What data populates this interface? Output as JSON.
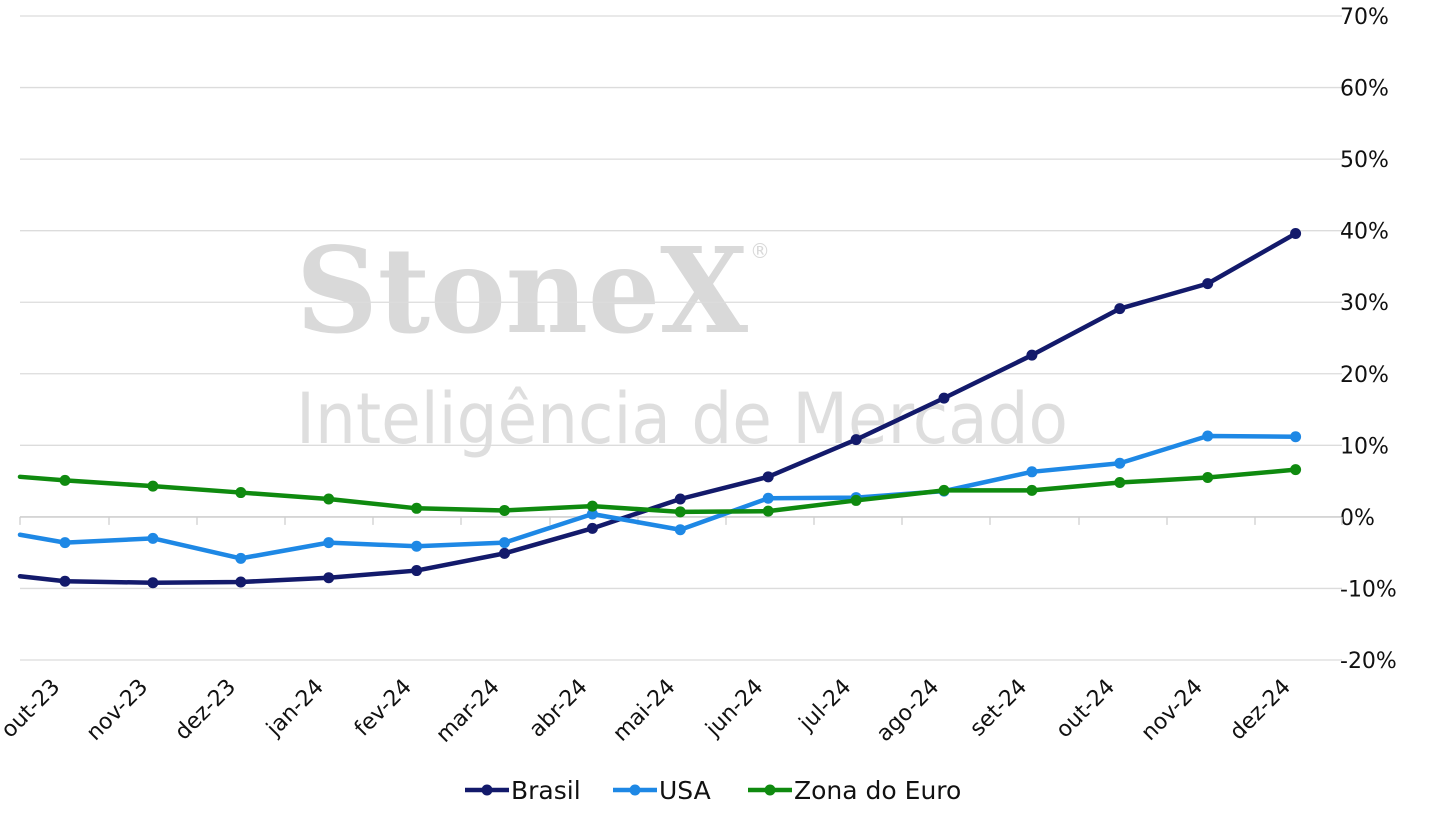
{
  "watermark": {
    "brand": "StoneX",
    "registered": "®",
    "subtitle": "Inteligência de Mercado"
  },
  "chart_data": {
    "type": "line",
    "categories": [
      "out-23",
      "nov-23",
      "dez-23",
      "jan-24",
      "fev-24",
      "mar-24",
      "abr-24",
      "mai-24",
      "jun-24",
      "jul-24",
      "ago-24",
      "set-24",
      "out-24",
      "nov-24",
      "dez-24"
    ],
    "y_tick_labels": [
      "70%",
      "60%",
      "50%",
      "40%",
      "30%",
      "20%",
      "10%",
      "0%",
      "-10%",
      "-20%"
    ],
    "ylim": [
      -20,
      70
    ],
    "y_axis_position": "right",
    "grid": true,
    "legend_position": "bottom",
    "series": [
      {
        "name": "Brasil",
        "color": "#131a6b",
        "lead_in": -8.3,
        "values": [
          -9.0,
          -9.2,
          -9.1,
          -8.5,
          -7.5,
          -5.1,
          -1.6,
          2.5,
          5.6,
          10.8,
          16.6,
          22.6,
          29.1,
          32.6,
          39.6
        ]
      },
      {
        "name": "USA",
        "color": "#1e88e5",
        "lead_in": -2.5,
        "values": [
          -3.6,
          -3.0,
          -5.8,
          -3.6,
          -4.1,
          -3.6,
          0.4,
          -1.8,
          2.6,
          2.7,
          3.6,
          6.3,
          7.5,
          11.3,
          11.2
        ]
      },
      {
        "name": "Zona do Euro",
        "color": "#0f8a0f",
        "lead_in": 5.6,
        "values": [
          5.1,
          4.3,
          3.4,
          2.5,
          1.2,
          0.9,
          1.5,
          0.7,
          0.8,
          2.3,
          3.7,
          3.7,
          4.8,
          5.5,
          6.6
        ]
      }
    ]
  }
}
